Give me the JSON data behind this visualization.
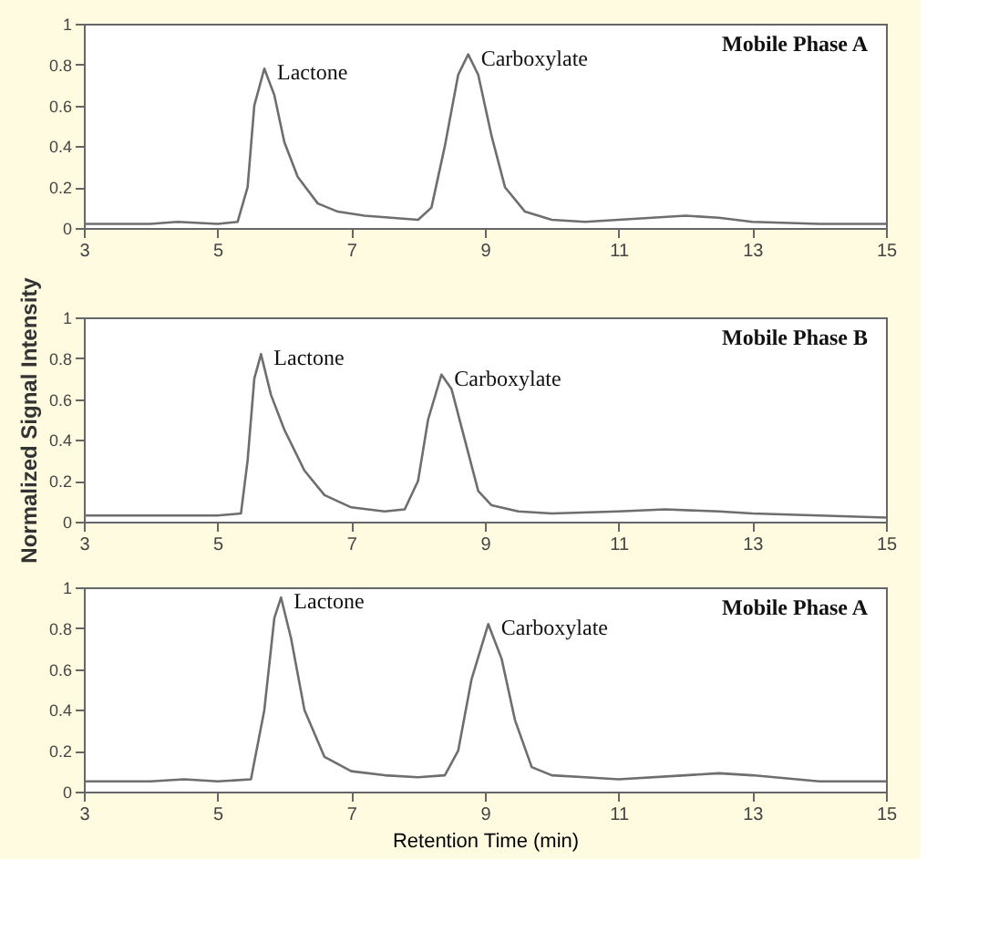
{
  "chart_data": [
    {
      "type": "line",
      "color": "#6e6e6e",
      "marker": "none",
      "line_style": "solid",
      "grid": false,
      "x": [
        3,
        4,
        4.4,
        5,
        5.3,
        5.45,
        5.55,
        5.7,
        5.85,
        6.0,
        6.2,
        6.5,
        6.8,
        7.2,
        7.6,
        8.0,
        8.2,
        8.4,
        8.6,
        8.75,
        8.9,
        9.1,
        9.3,
        9.6,
        10,
        10.5,
        11,
        11.5,
        12,
        12.5,
        13,
        14,
        15
      ],
      "values": [
        0.02,
        0.02,
        0.03,
        0.02,
        0.03,
        0.2,
        0.6,
        0.78,
        0.65,
        0.42,
        0.25,
        0.12,
        0.08,
        0.06,
        0.05,
        0.04,
        0.1,
        0.4,
        0.75,
        0.85,
        0.75,
        0.45,
        0.2,
        0.08,
        0.04,
        0.03,
        0.04,
        0.05,
        0.06,
        0.05,
        0.03,
        0.02,
        0.02
      ],
      "xlim": [
        3,
        15
      ],
      "xticks": [
        3,
        5,
        7,
        9,
        11,
        13,
        15
      ],
      "ylim": [
        0,
        1
      ],
      "yticks": [
        0,
        0.2,
        0.4,
        0.6,
        0.8,
        1
      ],
      "annotations": [
        {
          "text": "Lactone",
          "x": 5.7,
          "y": 0.78
        },
        {
          "text": "Carboxylate",
          "x": 8.75,
          "y": 0.85
        },
        "Mobile Phase A"
      ]
    },
    {
      "type": "line",
      "color": "#6e6e6e",
      "marker": "none",
      "line_style": "solid",
      "grid": false,
      "ylabel": "Normalized Signal Intensity",
      "x": [
        3,
        4,
        5,
        5.35,
        5.45,
        5.55,
        5.65,
        5.8,
        6.0,
        6.3,
        6.6,
        7.0,
        7.5,
        7.8,
        8.0,
        8.15,
        8.35,
        8.5,
        8.7,
        8.9,
        9.1,
        9.5,
        10,
        11,
        11.7,
        12.5,
        13,
        14,
        15
      ],
      "values": [
        0.03,
        0.03,
        0.03,
        0.04,
        0.3,
        0.7,
        0.82,
        0.62,
        0.45,
        0.25,
        0.13,
        0.07,
        0.05,
        0.06,
        0.2,
        0.5,
        0.72,
        0.65,
        0.4,
        0.15,
        0.08,
        0.05,
        0.04,
        0.05,
        0.06,
        0.05,
        0.04,
        0.03,
        0.02
      ],
      "xlim": [
        3,
        15
      ],
      "xticks": [
        3,
        5,
        7,
        9,
        11,
        13,
        15
      ],
      "ylim": [
        0,
        1
      ],
      "yticks": [
        0,
        0.2,
        0.4,
        0.6,
        0.8,
        1
      ],
      "annotations": [
        {
          "text": "Lactone",
          "x": 5.65,
          "y": 0.82
        },
        {
          "text": "Carboxylate",
          "x": 8.35,
          "y": 0.72
        },
        "Mobile Phase B"
      ]
    },
    {
      "type": "line",
      "color": "#6e6e6e",
      "marker": "none",
      "line_style": "solid",
      "grid": false,
      "xlabel": "Retention Time (min)",
      "x": [
        3,
        4,
        4.5,
        5,
        5.5,
        5.7,
        5.85,
        5.95,
        6.1,
        6.3,
        6.6,
        7.0,
        7.5,
        8.0,
        8.4,
        8.6,
        8.8,
        9.05,
        9.25,
        9.45,
        9.7,
        10,
        10.5,
        11,
        12,
        12.5,
        13,
        14,
        15
      ],
      "values": [
        0.05,
        0.05,
        0.06,
        0.05,
        0.06,
        0.4,
        0.85,
        0.95,
        0.75,
        0.4,
        0.17,
        0.1,
        0.08,
        0.07,
        0.08,
        0.2,
        0.55,
        0.82,
        0.65,
        0.35,
        0.12,
        0.08,
        0.07,
        0.06,
        0.08,
        0.09,
        0.08,
        0.05,
        0.05
      ],
      "xlim": [
        3,
        15
      ],
      "xticks": [
        3,
        5,
        7,
        9,
        11,
        13,
        15
      ],
      "ylim": [
        0,
        1
      ],
      "yticks": [
        0,
        0.2,
        0.4,
        0.6,
        0.8,
        1
      ],
      "annotations": [
        {
          "text": "Lactone",
          "x": 5.95,
          "y": 0.95
        },
        {
          "text": "Carboxylate",
          "x": 9.05,
          "y": 0.82
        },
        "Mobile Phase A"
      ]
    }
  ]
}
